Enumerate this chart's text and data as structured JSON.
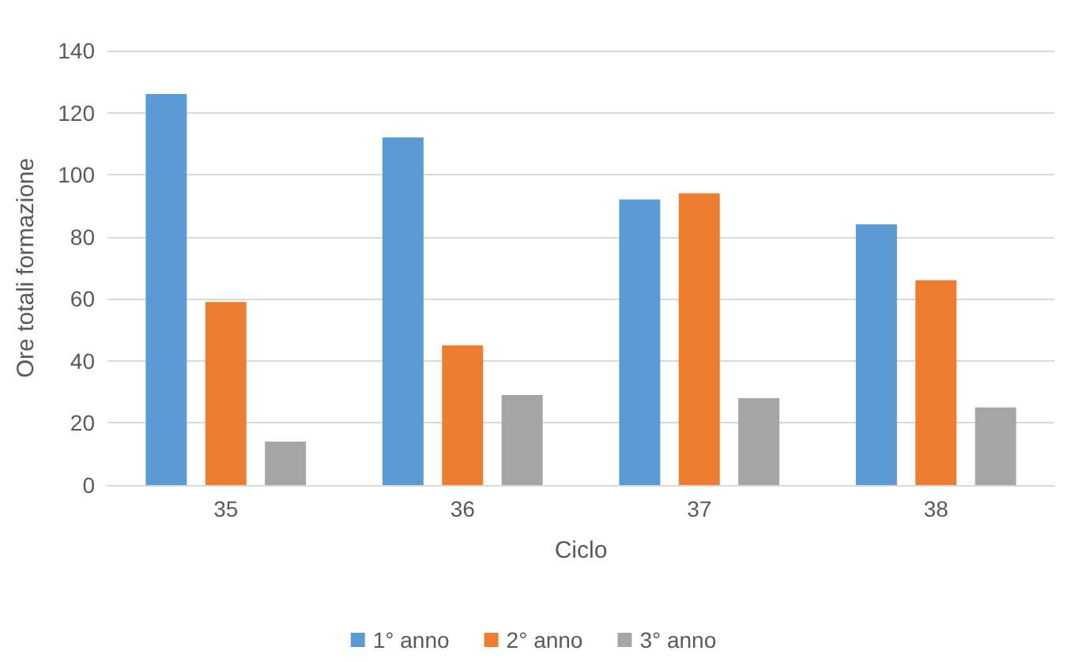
{
  "chart_data": {
    "type": "bar",
    "xlabel": "Ciclo",
    "ylabel": "Ore totali formazione",
    "categories": [
      "35",
      "36",
      "37",
      "38"
    ],
    "series": [
      {
        "name": "1° anno",
        "color": "#5b9bd5",
        "values": [
          126,
          112,
          92,
          84
        ]
      },
      {
        "name": "2° anno",
        "color": "#ed7d31",
        "values": [
          59,
          45,
          94,
          66
        ]
      },
      {
        "name": "3° anno",
        "color": "#a5a5a5",
        "values": [
          14,
          29,
          28,
          25
        ]
      }
    ],
    "ylim": [
      0,
      140
    ],
    "yticks": [
      0,
      20,
      40,
      60,
      80,
      100,
      120,
      140
    ],
    "grid": "y",
    "legend": "bottom"
  }
}
